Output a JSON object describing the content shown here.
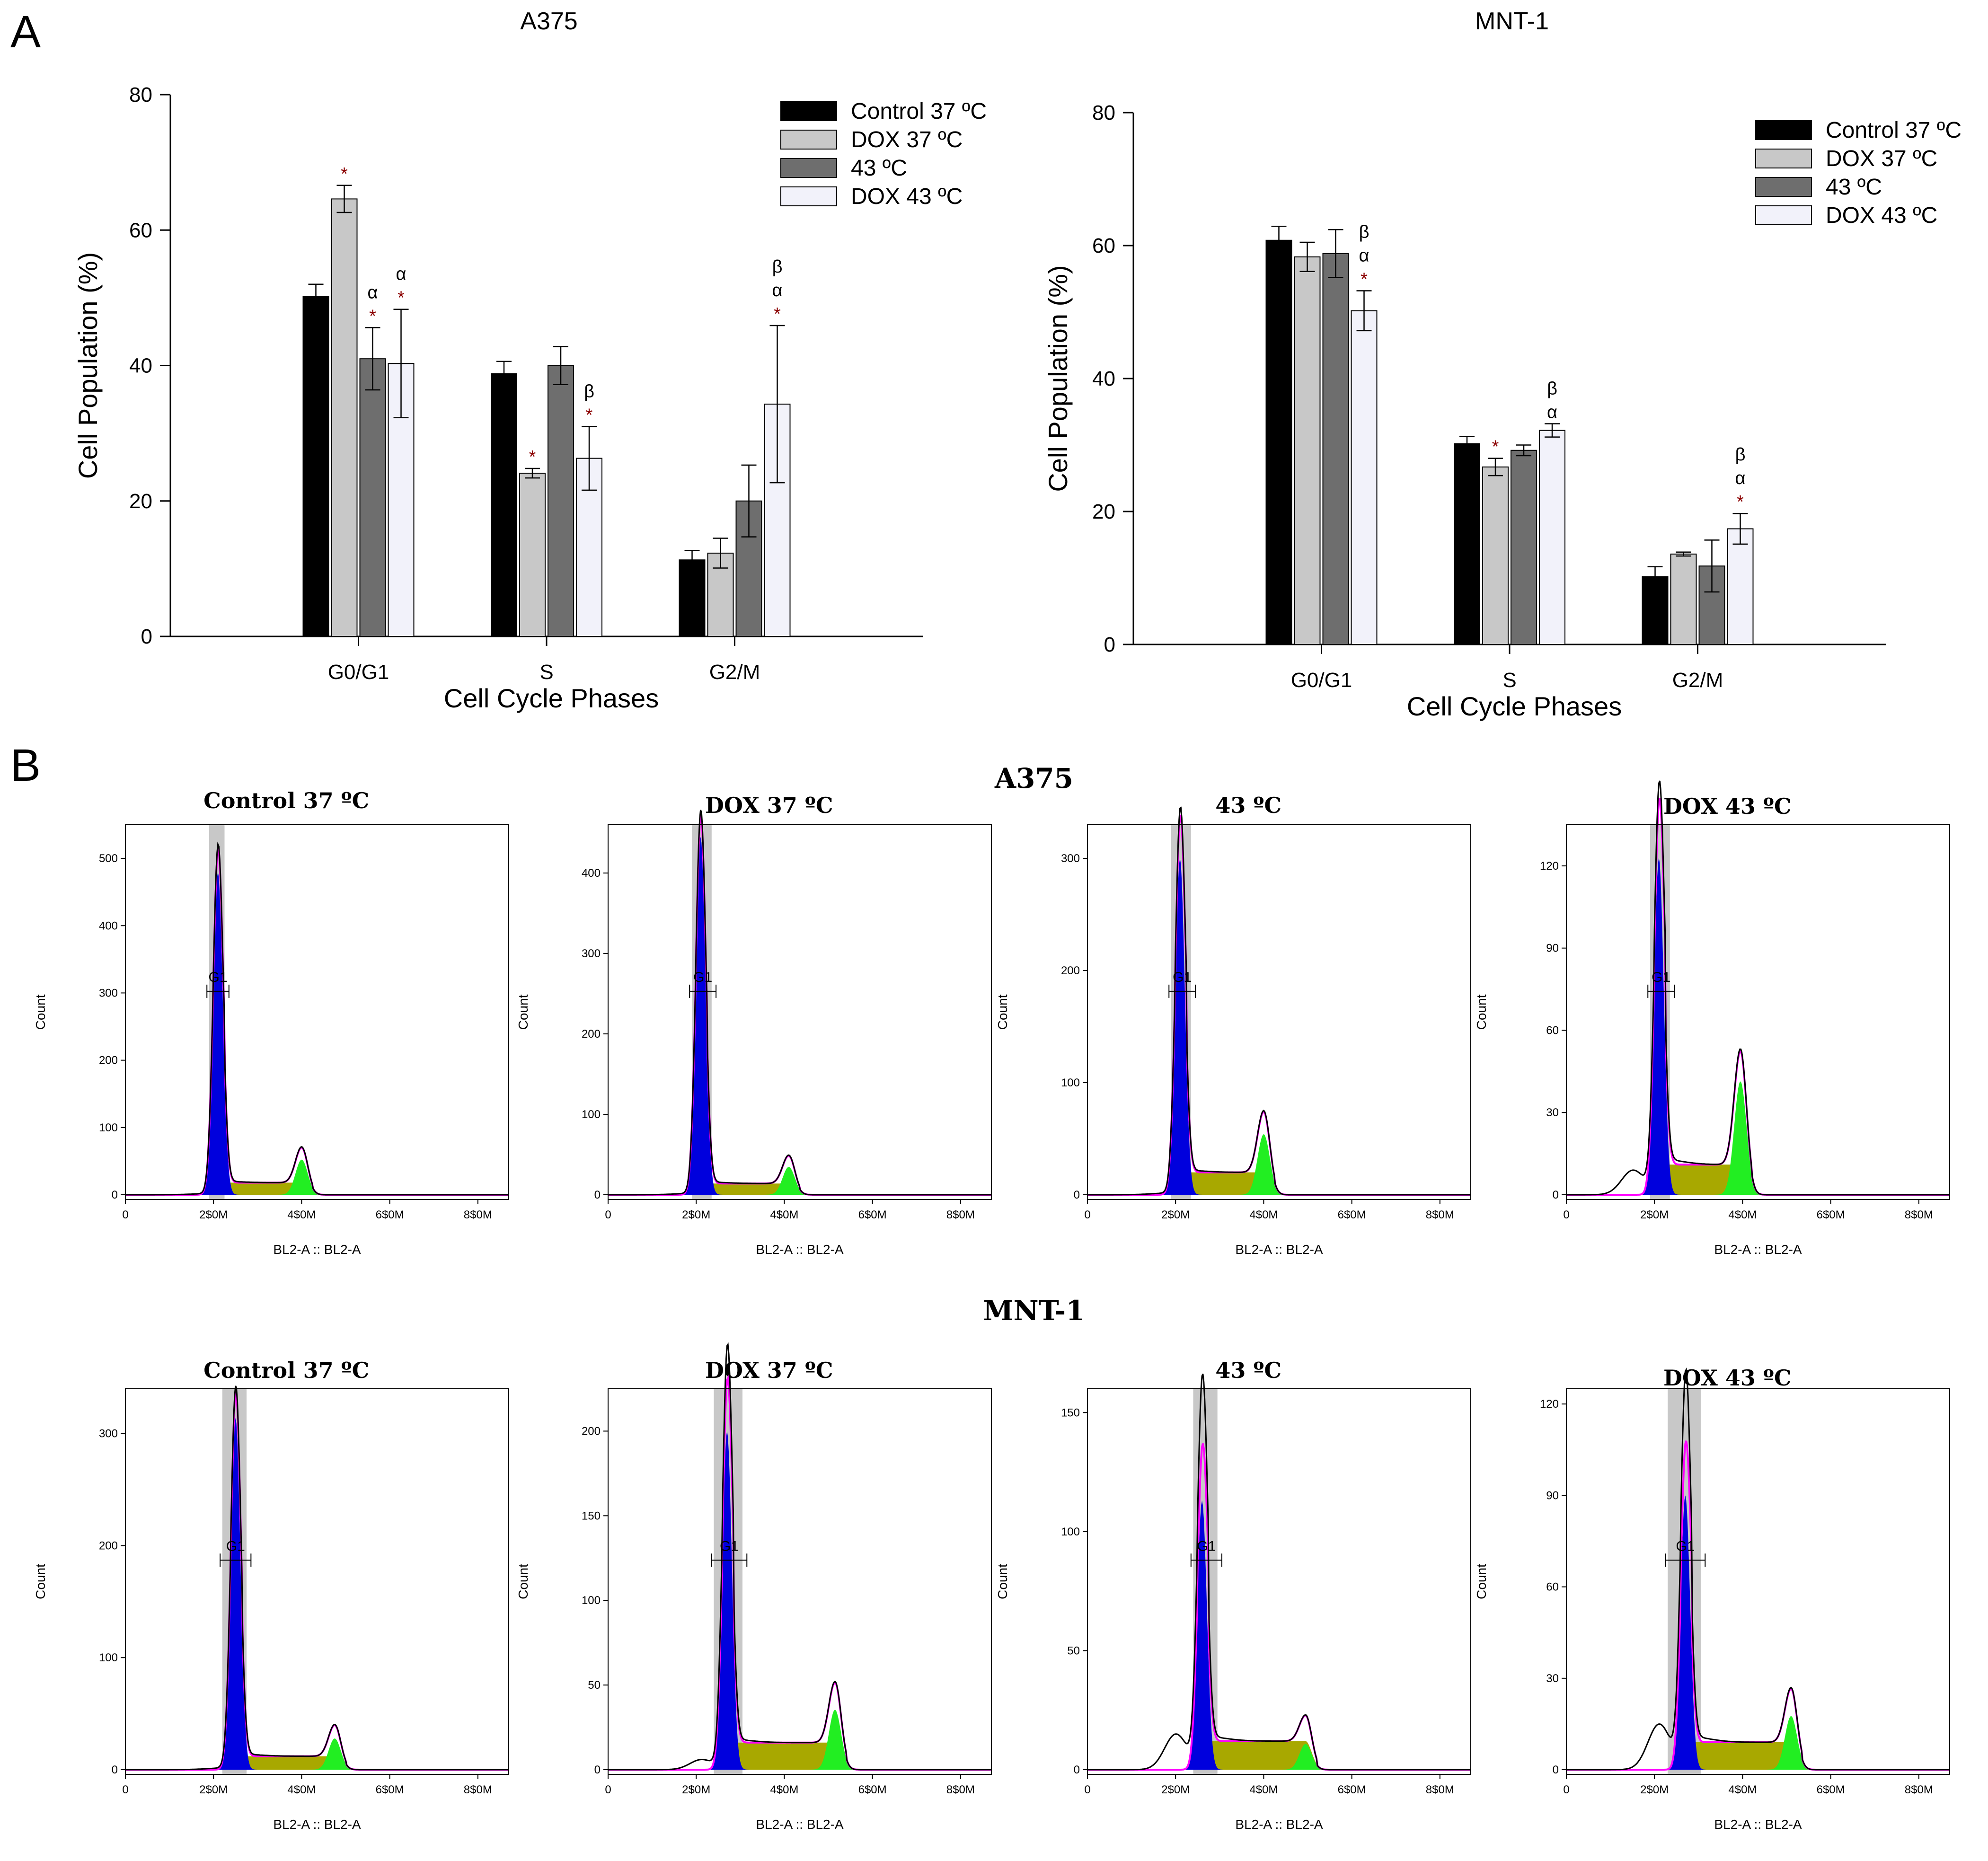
{
  "panel_a_letter": "A",
  "panel_b_letter": "B",
  "colors": {
    "control_37": "#000000",
    "dox_37": "#c8c8c8",
    "c43": "#6e6e6e",
    "dox_43": "#f2f2fa",
    "g1_fill": "#0000dd",
    "s_fill": "#a8a800",
    "g2_fill": "#22ee22",
    "fit_line": "#ff00ff",
    "gate_band": "#c8c8c8"
  },
  "chart_data": [
    {
      "type": "bar",
      "title": "A375",
      "xlabel": "Cell Cycle Phases",
      "ylabel": "Cell Population (%)",
      "ylim": [
        0,
        80
      ],
      "yticks": [
        "0",
        "20",
        "40",
        "60",
        "80"
      ],
      "categories": [
        "G0/G1",
        "S",
        "G2/M"
      ],
      "legend_position": "top-right",
      "series": [
        {
          "name": "Control 37 ºC",
          "values": [
            50.2,
            38.8,
            11.3
          ],
          "errors": [
            1.8,
            1.8,
            1.4
          ]
        },
        {
          "name": "DOX 37 ºC",
          "values": [
            64.6,
            24.1,
            12.3
          ],
          "errors": [
            2.0,
            0.7,
            2.2
          ]
        },
        {
          "name": "43 ºC",
          "values": [
            41.0,
            40.0,
            20.0
          ],
          "errors": [
            4.6,
            2.8,
            5.3
          ]
        },
        {
          "name": "DOX 43 ºC",
          "values": [
            40.3,
            26.3,
            34.3
          ],
          "errors": [
            8.0,
            4.7,
            11.6
          ]
        }
      ],
      "annotations": [
        [
          [],
          [
            "*"
          ],
          [
            "*",
            "α"
          ],
          [
            "*",
            "α"
          ]
        ],
        [
          [],
          [
            "*"
          ],
          [],
          [
            "*",
            "β"
          ]
        ],
        [
          [],
          [],
          [],
          [
            "*",
            "α",
            "β"
          ]
        ]
      ]
    },
    {
      "type": "bar",
      "title": "MNT-1",
      "xlabel": "Cell Cycle Phases",
      "ylabel": "Cell Population (%)",
      "ylim": [
        0,
        80
      ],
      "yticks": [
        "0",
        "20",
        "40",
        "60",
        "80"
      ],
      "categories": [
        "G0/G1",
        "S",
        "G2/M"
      ],
      "legend_position": "top-right",
      "series": [
        {
          "name": "Control 37 ºC",
          "values": [
            60.8,
            30.2,
            10.2
          ],
          "errors": [
            2.1,
            1.1,
            1.5
          ]
        },
        {
          "name": "DOX 37 ºC",
          "values": [
            58.3,
            26.7,
            13.6
          ],
          "errors": [
            2.2,
            1.3,
            0.3
          ]
        },
        {
          "name": "43 ºC",
          "values": [
            58.8,
            29.2,
            11.8
          ],
          "errors": [
            3.6,
            0.8,
            3.9
          ]
        },
        {
          "name": "DOX 43 ºC",
          "values": [
            50.2,
            32.2,
            17.4
          ],
          "errors": [
            3.0,
            1.0,
            2.3
          ]
        }
      ],
      "annotations": [
        [
          [],
          [],
          [],
          [
            "*",
            "α",
            "β"
          ]
        ],
        [
          [],
          [
            "*"
          ],
          [],
          [
            "α",
            "β"
          ]
        ],
        [
          [],
          [],
          [],
          [
            "*",
            "α",
            "β"
          ]
        ]
      ]
    }
  ],
  "histograms": {
    "x_axis_label": "BL2-A :: BL2-A",
    "y_axis_label": "Count",
    "x_ticks": [
      "0",
      "2$0M",
      "4$0M",
      "6$0M",
      "8$0M"
    ],
    "gate_label": "G1",
    "rows": [
      {
        "title": "A375",
        "panels": [
          {
            "title": "Control 37 ºC",
            "yticks": [
              "0",
              "100",
              "200",
              "300",
              "400",
              "500"
            ],
            "ymax": 550,
            "g1_pos": 2.1,
            "g1_height": 485,
            "fit_height": 480,
            "g2_pos": 4.0,
            "g2_height": 63,
            "s_level": 18,
            "gate": [
              1.9,
              2.3
            ],
            "sub_g1": 0
          },
          {
            "title": "DOX 37 ºC",
            "yticks": [
              "0",
              "100",
              "200",
              "300",
              "400"
            ],
            "ymax": 460,
            "g1_pos": 2.1,
            "g1_height": 450,
            "fit_height": 445,
            "g2_pos": 4.1,
            "g2_height": 43,
            "s_level": 14,
            "gate": [
              1.9,
              2.4
            ],
            "sub_g1": 0
          },
          {
            "title": "43 ºC",
            "yticks": [
              "0",
              "100",
              "200",
              "300"
            ],
            "ymax": 330,
            "g1_pos": 2.1,
            "g1_height": 305,
            "fit_height": 300,
            "g2_pos": 4.0,
            "g2_height": 66,
            "s_level": 20,
            "gate": [
              1.9,
              2.4
            ],
            "sub_g1": 0
          },
          {
            "title": "DOX 43 ºC",
            "yticks": [
              "0",
              "30",
              "60",
              "90",
              "120"
            ],
            "ymax": 135,
            "g1_pos": 2.1,
            "g1_height": 127,
            "fit_height": 123,
            "g2_pos": 3.95,
            "g2_height": 48,
            "s_level": 11,
            "gate": [
              1.9,
              2.4
            ],
            "sub_g1": 8
          }
        ]
      },
      {
        "title": "MNT-1",
        "panels": [
          {
            "title": "Control 37 ºC",
            "yticks": [
              "0",
              "100",
              "200",
              "300"
            ],
            "ymax": 340,
            "g1_pos": 2.5,
            "g1_height": 318,
            "fit_height": 314,
            "g2_pos": 4.75,
            "g2_height": 35,
            "s_level": 12,
            "gate": [
              2.2,
              2.8
            ],
            "sub_g1": 0
          },
          {
            "title": "DOX 37 ºC",
            "yticks": [
              "0",
              "50",
              "100",
              "150",
              "200"
            ],
            "ymax": 225,
            "g1_pos": 2.7,
            "g1_height": 218,
            "fit_height": 200,
            "g2_pos": 5.15,
            "g2_height": 45,
            "s_level": 16,
            "gate": [
              2.4,
              3.1
            ],
            "sub_g1": 5
          },
          {
            "title": "43 ºC",
            "yticks": [
              "0",
              "50",
              "100",
              "150"
            ],
            "ymax": 160,
            "g1_pos": 2.6,
            "g1_height": 140,
            "fit_height": 113,
            "g2_pos": 4.95,
            "g2_height": 18,
            "s_level": 12,
            "gate": [
              2.4,
              3.0
            ],
            "sub_g1": 14
          },
          {
            "title": "DOX 43 ºC",
            "yticks": [
              "0",
              "30",
              "60",
              "90",
              "120"
            ],
            "ymax": 125,
            "g1_pos": 2.7,
            "g1_height": 111,
            "fit_height": 90,
            "g2_pos": 5.1,
            "g2_height": 23,
            "s_level": 9,
            "gate": [
              2.3,
              3.1
            ],
            "sub_g1": 14
          }
        ]
      }
    ]
  }
}
